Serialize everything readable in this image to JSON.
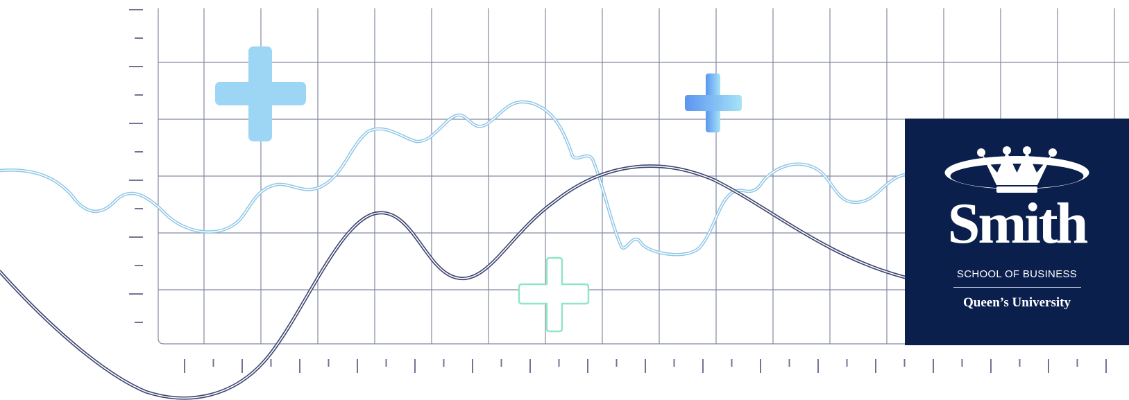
{
  "banner": {
    "colors": {
      "grid": "#6f7590",
      "wave_light": "#8ec5e6",
      "wave_dark": "#3d4570",
      "plus_light_blue": "#9dd6f5",
      "plus_gradient_start": "#5b95f0",
      "plus_gradient_end": "#a6e3f7",
      "plus_outline_mint": "#8ee6c3",
      "logo_panel": "#0b1f4d"
    },
    "decorations": {
      "plus_icons": [
        "plus-icon-light-blue",
        "plus-icon-gradient-blue",
        "plus-icon-mint-outline"
      ],
      "crown_icon": "crown-emblem-icon"
    }
  },
  "logo": {
    "wordmark": "Smith",
    "school": "SCHOOL OF BUSINESS",
    "university": "Queen’s University"
  }
}
